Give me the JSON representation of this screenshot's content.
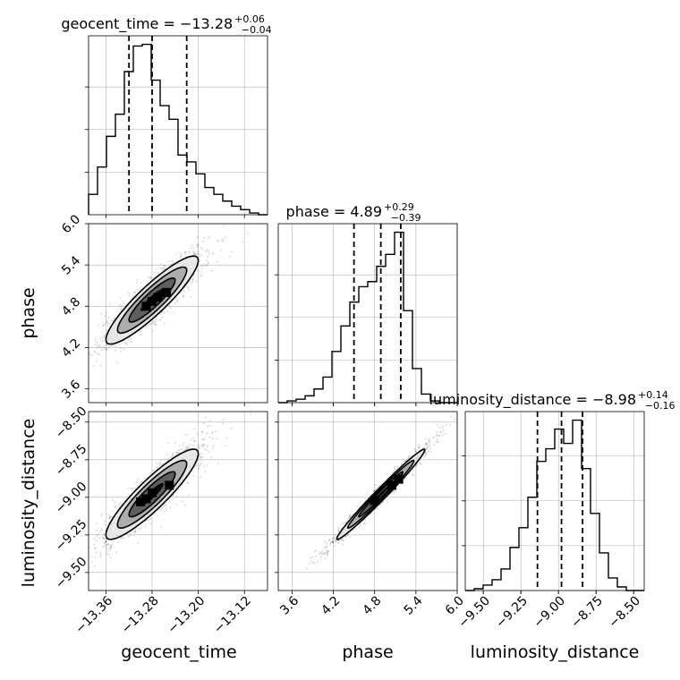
{
  "chart_data": {
    "type": "corner",
    "parameters": [
      {
        "name": "geocent_time",
        "axis_label": "geocent_time",
        "title_main": "geocent_time = −13.28",
        "title_sup": "+0.06",
        "title_sub": "−0.04",
        "median": -13.28,
        "quantiles": [
          -13.32,
          -13.28,
          -13.22
        ],
        "range": [
          -13.39,
          -13.08
        ],
        "ticks": [
          -13.36,
          -13.28,
          -13.2,
          -13.12
        ],
        "tick_labels": [
          "−13.36",
          "−13.28",
          "−13.20",
          "−13.12"
        ],
        "hist": {
          "edges": [
            -13.39,
            -13.3745,
            -13.359,
            -13.3435,
            -13.328,
            -13.3125,
            -13.297,
            -13.2815,
            -13.266,
            -13.2505,
            -13.235,
            -13.2195,
            -13.204,
            -13.1885,
            -13.173,
            -13.1575,
            -13.142,
            -13.1265,
            -13.111,
            -13.0955,
            -13.08
          ],
          "counts": [
            12,
            28,
            46,
            59,
            84,
            99,
            100,
            79,
            64,
            56,
            35,
            31,
            24,
            16,
            12,
            8,
            5,
            3,
            1,
            0
          ]
        }
      },
      {
        "name": "phase",
        "axis_label": "phase",
        "title_main": "phase = 4.89",
        "title_sup": "+0.29",
        "title_sub": "−0.39",
        "median": 4.89,
        "quantiles": [
          4.5,
          4.89,
          5.18
        ],
        "range": [
          3.4,
          6.0
        ],
        "ticks": [
          3.6,
          4.2,
          4.8,
          5.4,
          6.0
        ],
        "tick_labels": [
          "3.6",
          "4.2",
          "4.8",
          "5.4",
          "6.0"
        ],
        "hist": {
          "edges": [
            3.4,
            3.53,
            3.66,
            3.79,
            3.92,
            4.05,
            4.18,
            4.31,
            4.44,
            4.57,
            4.7,
            4.83,
            4.96,
            5.09,
            5.22,
            5.35,
            5.48,
            5.61,
            5.74,
            5.87,
            6.0
          ],
          "counts": [
            0,
            1,
            2,
            4,
            8,
            15,
            30,
            45,
            59,
            68,
            71,
            80,
            87,
            100,
            54,
            20,
            5,
            1,
            0,
            0
          ]
        }
      },
      {
        "name": "luminosity_distance",
        "axis_label": "luminosity_distance",
        "title_main": "luminosity_distance = −8.98",
        "title_sup": "+0.14",
        "title_sub": "−0.16",
        "median": -8.98,
        "quantiles": [
          -9.14,
          -8.98,
          -8.84
        ],
        "range": [
          -9.62,
          -8.43
        ],
        "ticks": [
          -9.5,
          -9.25,
          -9.0,
          -8.75,
          -8.5
        ],
        "tick_labels": [
          "−9.50",
          "−9.25",
          "−9.00",
          "−8.75",
          "−8.50"
        ],
        "hist": {
          "edges": [
            -9.62,
            -9.5605,
            -9.501,
            -9.4415,
            -9.382,
            -9.3225,
            -9.263,
            -9.2035,
            -9.144,
            -9.0845,
            -9.025,
            -8.9655,
            -8.906,
            -8.8465,
            -8.787,
            -8.7275,
            -8.668,
            -8.6085,
            -8.549,
            -8.4895,
            -8.43
          ],
          "counts": [
            0,
            1,
            3,
            6,
            12,
            24,
            35,
            52,
            72,
            79,
            90,
            82,
            95,
            68,
            43,
            21,
            7,
            2,
            0,
            0
          ]
        }
      }
    ],
    "pairs": [
      {
        "x": "geocent_time",
        "y": "phase",
        "center": [
          -13.28,
          4.89
        ],
        "std": [
          0.04,
          0.32
        ],
        "correlation": 0.9,
        "contour_levels_sigma": [
          0.5,
          1.0,
          1.5,
          2.0
        ],
        "mode_points": [
          [
            -13.29,
            4.8
          ],
          [
            -13.27,
            4.93
          ],
          [
            -13.255,
            5.0
          ],
          [
            -13.28,
            4.87
          ]
        ]
      },
      {
        "x": "geocent_time",
        "y": "luminosity_distance",
        "center": [
          -13.28,
          -8.98
        ],
        "std": [
          0.04,
          0.15
        ],
        "correlation": 0.9,
        "contour_levels_sigma": [
          0.5,
          1.0,
          1.5,
          2.0
        ],
        "mode_points": [
          [
            -13.3,
            -9.03
          ],
          [
            -13.28,
            -8.97
          ],
          [
            -13.25,
            -8.92
          ],
          [
            -13.29,
            -9.01
          ]
        ]
      },
      {
        "x": "phase",
        "y": "luminosity_distance",
        "center": [
          4.89,
          -8.98
        ],
        "std": [
          0.32,
          0.15
        ],
        "correlation": 0.985,
        "contour_levels_sigma": [
          0.5,
          1.0,
          1.5,
          2.0
        ],
        "mode_points": [
          [
            4.8,
            -9.02
          ],
          [
            5.05,
            -8.92
          ],
          [
            5.15,
            -8.88
          ]
        ]
      }
    ],
    "grid": true
  }
}
